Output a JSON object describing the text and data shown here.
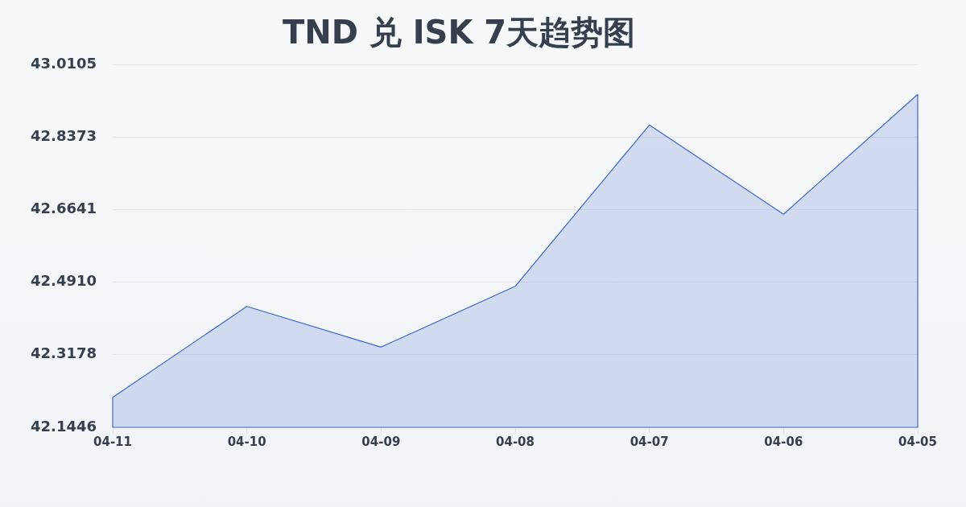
{
  "chart_data": {
    "type": "area",
    "title": "TND 兑 ISK 7天趋势图",
    "categories": [
      "04-11",
      "04-10",
      "04-09",
      "04-08",
      "04-07",
      "04-06",
      "04-05"
    ],
    "series": [
      {
        "color": "#3a67c9",
        "values": [
          42.216,
          42.433,
          42.336,
          42.481,
          42.866,
          42.653,
          42.939
        ]
      }
    ],
    "ylim": [
      42.1446,
      43.0105
    ],
    "yticks": [
      42.1446,
      42.3178,
      {
        "value": 42.491,
        "label": "42.4910"
      },
      42.6641,
      42.8373,
      43.0105
    ],
    "grid": "y"
  }
}
